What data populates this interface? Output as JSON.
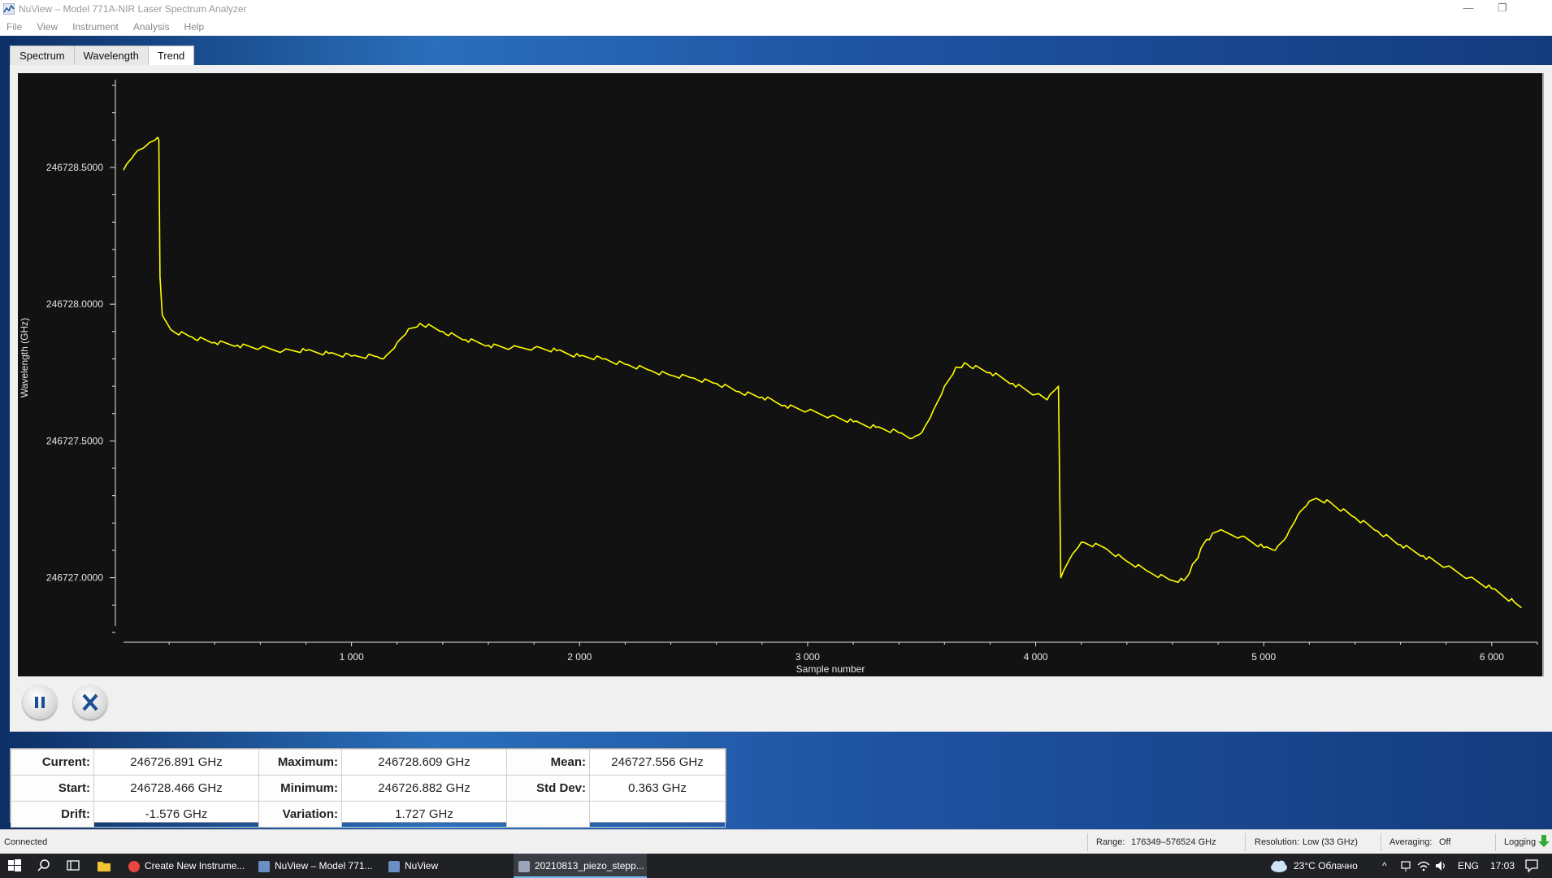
{
  "window": {
    "title": "NuView – Model 771A-NIR Laser Spectrum Analyzer",
    "minimize": "—",
    "restore": "❐"
  },
  "menu": [
    "File",
    "View",
    "Instrument",
    "Analysis",
    "Help"
  ],
  "tabs": [
    {
      "label": "Spectrum",
      "active": false
    },
    {
      "label": "Wavelength",
      "active": false
    },
    {
      "label": "Trend",
      "active": true
    }
  ],
  "chart_data": {
    "type": "line",
    "title": "",
    "xlabel": "Sample number",
    "ylabel": "Wavelength (GHz)",
    "xlim": [
      0,
      6200
    ],
    "ylim": [
      246726.77,
      246728.8
    ],
    "x_ticks": [
      {
        "value": 1000,
        "label": "1 000"
      },
      {
        "value": 2000,
        "label": "2 000"
      },
      {
        "value": 3000,
        "label": "3 000"
      },
      {
        "value": 4000,
        "label": "4 000"
      },
      {
        "value": 5000,
        "label": "5 000"
      },
      {
        "value": 6000,
        "label": "6 000"
      }
    ],
    "y_ticks": [
      {
        "value": 246727.0,
        "label": "246727.0000"
      },
      {
        "value": 246727.5,
        "label": "246727.5000"
      },
      {
        "value": 246728.0,
        "label": "246728.0000"
      },
      {
        "value": 246728.5,
        "label": "246728.5000"
      }
    ],
    "grid": false,
    "line_color": "#ffff00",
    "background": "#121212",
    "series": [
      {
        "x": [
          0,
          50,
          100,
          150,
          155,
          160,
          170,
          220,
          300,
          400,
          500,
          600,
          700,
          800,
          900,
          1000,
          1100,
          1140,
          1200,
          1250,
          1300,
          1400,
          1500,
          1600,
          1700,
          1800,
          1900,
          2000,
          2100,
          2200,
          2300,
          2400,
          2500,
          2600,
          2700,
          2800,
          2900,
          3000,
          3100,
          3200,
          3300,
          3400,
          3460,
          3500,
          3550,
          3600,
          3650,
          3700,
          3800,
          3900,
          4000,
          4050,
          4100,
          4110,
          4150,
          4200,
          4300,
          4400,
          4500,
          4600,
          4650,
          4700,
          4750,
          4800,
          4900,
          5000,
          5050,
          5100,
          5150,
          5200,
          5230,
          5300,
          5400,
          5500,
          5600,
          5700,
          5800,
          5900,
          6000,
          6100,
          6130
        ],
        "y": [
          246728.49,
          246728.55,
          246728.58,
          246728.61,
          246728.6,
          246728.1,
          246727.96,
          246727.9,
          246727.88,
          246727.86,
          246727.85,
          246727.84,
          246727.83,
          246727.83,
          246727.82,
          246727.81,
          246727.81,
          246727.8,
          246727.86,
          246727.91,
          246727.93,
          246727.9,
          246727.87,
          246727.85,
          246727.84,
          246727.84,
          246727.83,
          246727.81,
          246727.8,
          246727.78,
          246727.76,
          246727.74,
          246727.73,
          246727.71,
          246727.68,
          246727.66,
          246727.63,
          246727.61,
          246727.59,
          246727.57,
          246727.55,
          246727.53,
          246727.51,
          246727.53,
          246727.61,
          246727.7,
          246727.77,
          246727.78,
          246727.75,
          246727.71,
          246727.67,
          246727.65,
          246727.7,
          246727.0,
          246727.07,
          246727.13,
          246727.11,
          246727.06,
          246727.02,
          246726.99,
          246726.99,
          246727.06,
          246727.14,
          246727.17,
          246727.15,
          246727.11,
          246727.1,
          246727.15,
          246727.23,
          246727.28,
          246727.29,
          246727.27,
          246727.22,
          246727.17,
          246727.12,
          246727.08,
          246727.04,
          246727.0,
          246726.96,
          246726.91,
          246726.89
        ]
      }
    ]
  },
  "controls": {
    "pause_glyph": "❚❚",
    "stop_glyph": "X"
  },
  "stats": {
    "rows": [
      [
        {
          "label": "Current:",
          "value": "246726.891 GHz"
        },
        {
          "label": "Maximum:",
          "value": "246728.609 GHz"
        },
        {
          "label": "Mean:",
          "value": "246727.556 GHz"
        }
      ],
      [
        {
          "label": "Start:",
          "value": "246728.466 GHz"
        },
        {
          "label": "Minimum:",
          "value": "246726.882 GHz"
        },
        {
          "label": "Std Dev:",
          "value": "0.363 GHz"
        }
      ],
      [
        {
          "label": "Drift:",
          "value": "-1.576 GHz"
        },
        {
          "label": "Variation:",
          "value": "1.727 GHz"
        },
        {
          "label": "",
          "value": ""
        }
      ]
    ]
  },
  "statusbar": {
    "connection": "Connected",
    "range_label": "Range:",
    "range_value": "176349–576524 GHz",
    "resolution_label": "Resolution:",
    "resolution_value": "Low (33 GHz)",
    "averaging_label": "Averaging:",
    "averaging_value": "Off",
    "logging_label": "Logging"
  },
  "taskbar": {
    "apps": [
      {
        "label": "Create New Instrume...",
        "active": false,
        "color": "#e8453c"
      },
      {
        "label": "NuView – Model 771...",
        "active": false,
        "color": "#6b8fc2"
      },
      {
        "label": "NuView",
        "active": false,
        "color": "#6b8fc2"
      },
      {
        "label": "20210813_piezo_stepp...",
        "active": true,
        "color": "#9aa6b8"
      }
    ],
    "weather": "23°C  Облачно",
    "tray_caret": "^",
    "language": "ENG",
    "time": "17:03"
  }
}
